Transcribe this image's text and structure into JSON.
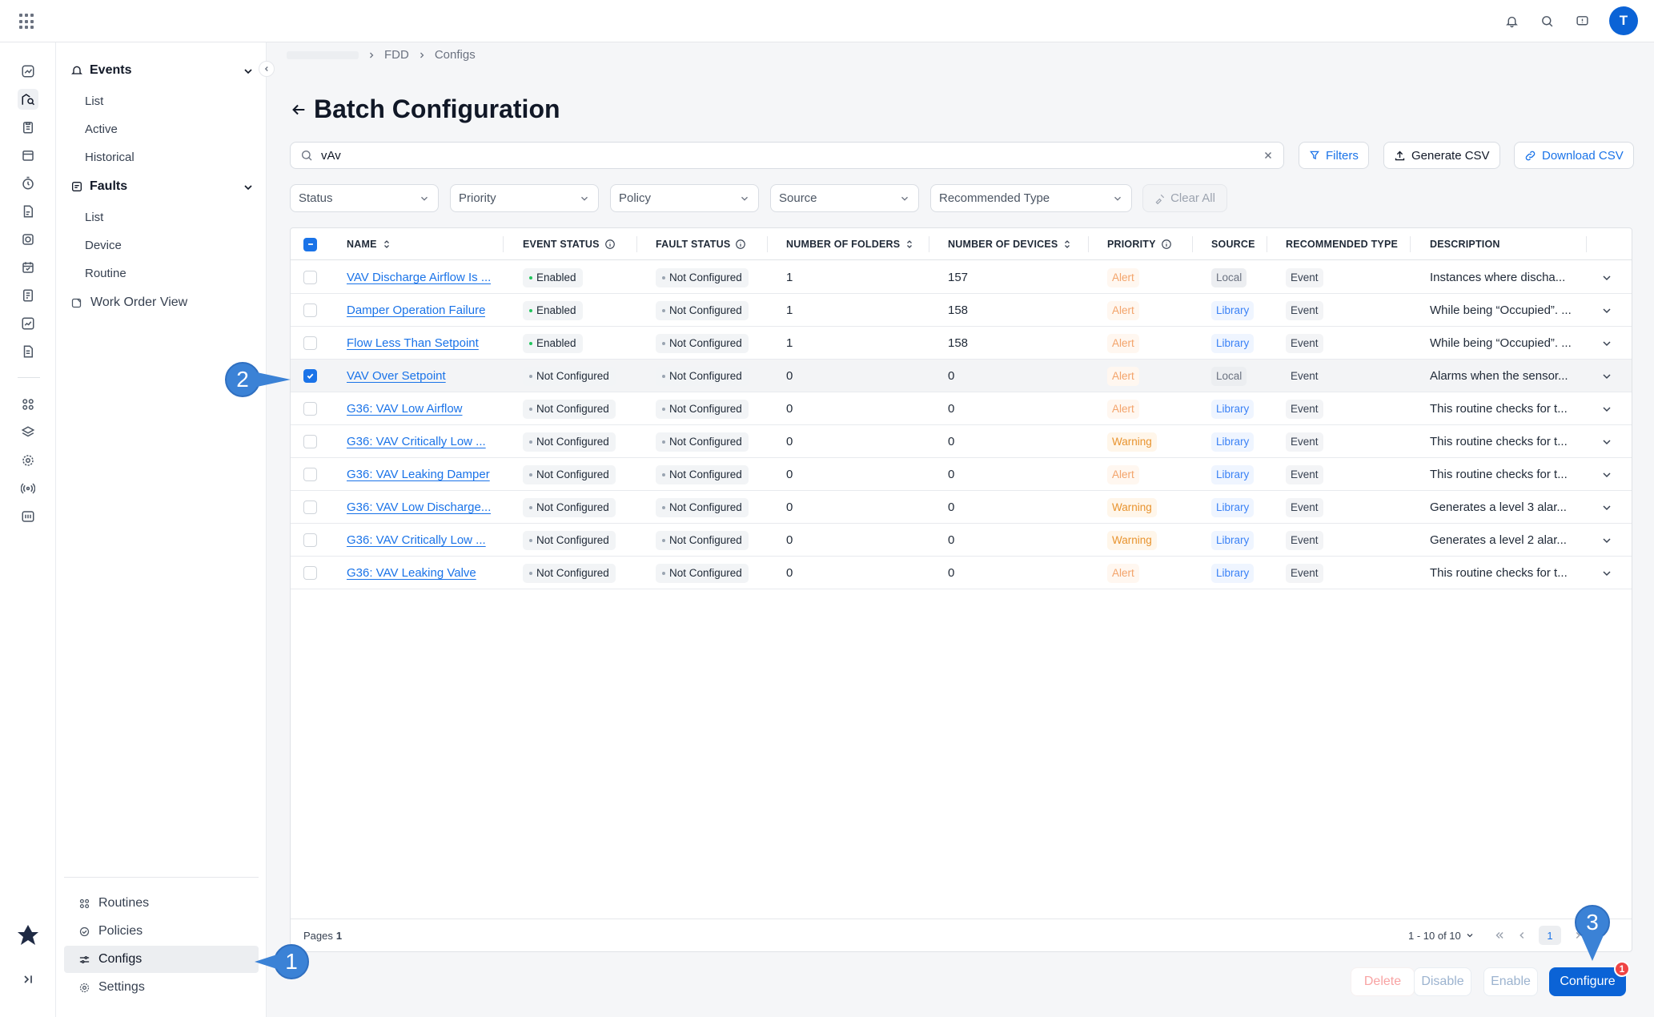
{
  "header": {
    "apps_icon": "grid-icon",
    "icons": [
      "bell-icon",
      "search-icon",
      "chat-icon"
    ],
    "avatar_initial": "T"
  },
  "rail": {
    "icons": [
      "dashboard-icon",
      "analytics-icon",
      "clipboard-icon",
      "calendar-icon",
      "timer-icon",
      "document-icon",
      "report-icon",
      "schedule-icon",
      "notes-icon",
      "chart-icon",
      "file-icon",
      "apps-icon",
      "layers-icon",
      "gear-icon",
      "signal-icon",
      "meter-icon",
      "logo-icon",
      "expand-icon"
    ]
  },
  "nav": {
    "events": {
      "label": "Events",
      "items": [
        "List",
        "Active",
        "Historical"
      ]
    },
    "faults": {
      "label": "Faults",
      "items": [
        "List",
        "Device",
        "Routine"
      ]
    },
    "work_order": "Work Order View",
    "bottom": {
      "routines": "Routines",
      "policies": "Policies",
      "configs": "Configs",
      "settings": "Settings"
    }
  },
  "breadcrumb": {
    "items": [
      "FDD",
      "Configs"
    ]
  },
  "page": {
    "title": "Batch Configuration"
  },
  "search": {
    "value": "vAv"
  },
  "toolbar": {
    "filters": "Filters",
    "generate_csv": "Generate CSV",
    "download_csv": "Download CSV"
  },
  "filters": {
    "status": "Status",
    "priority": "Priority",
    "policy": "Policy",
    "source": "Source",
    "recommended_type": "Recommended Type",
    "clear_all": "Clear All"
  },
  "table": {
    "columns": {
      "name": "NAME",
      "event_status": "EVENT STATUS",
      "fault_status": "FAULT STATUS",
      "folders": "NUMBER OF FOLDERS",
      "devices": "NUMBER OF DEVICES",
      "priority": "PRIORITY",
      "source": "SOURCE",
      "recommended_type": "RECOMMENDED TYPE",
      "description": "DESCRIPTION"
    },
    "rows": [
      {
        "name": "VAV Discharge Airflow Is ...",
        "event_status": "Enabled",
        "fault_status": "Not Configured",
        "folders": "1",
        "devices": "157",
        "priority": "Alert",
        "source": "Local",
        "type": "Event",
        "description": "Instances where discha...",
        "selected": false
      },
      {
        "name": "Damper Operation Failure",
        "event_status": "Enabled",
        "fault_status": "Not Configured",
        "folders": "1",
        "devices": "158",
        "priority": "Alert",
        "source": "Library",
        "type": "Event",
        "description": "While being “Occupied”. ...",
        "selected": false
      },
      {
        "name": "Flow Less Than Setpoint",
        "event_status": "Enabled",
        "fault_status": "Not Configured",
        "folders": "1",
        "devices": "158",
        "priority": "Alert",
        "source": "Library",
        "type": "Event",
        "description": "While being “Occupied”. ...",
        "selected": false
      },
      {
        "name": "VAV Over Setpoint",
        "event_status": "Not Configured",
        "fault_status": "Not Configured",
        "folders": "0",
        "devices": "0",
        "priority": "Alert",
        "source": "Local",
        "type": "Event",
        "description": "Alarms when the sensor...",
        "selected": true
      },
      {
        "name": "G36: VAV Low Airflow",
        "event_status": "Not Configured",
        "fault_status": "Not Configured",
        "folders": "0",
        "devices": "0",
        "priority": "Alert",
        "source": "Library",
        "type": "Event",
        "description": "This routine checks for t...",
        "selected": false
      },
      {
        "name": "G36: VAV Critically Low ...",
        "event_status": "Not Configured",
        "fault_status": "Not Configured",
        "folders": "0",
        "devices": "0",
        "priority": "Warning",
        "source": "Library",
        "type": "Event",
        "description": "This routine checks for t...",
        "selected": false
      },
      {
        "name": "G36: VAV Leaking Damper",
        "event_status": "Not Configured",
        "fault_status": "Not Configured",
        "folders": "0",
        "devices": "0",
        "priority": "Alert",
        "source": "Library",
        "type": "Event",
        "description": "This routine checks for t...",
        "selected": false
      },
      {
        "name": "G36: VAV Low Discharge...",
        "event_status": "Not Configured",
        "fault_status": "Not Configured",
        "folders": "0",
        "devices": "0",
        "priority": "Warning",
        "source": "Library",
        "type": "Event",
        "description": "Generates a level 3 alar...",
        "selected": false
      },
      {
        "name": "G36: VAV Critically Low ...",
        "event_status": "Not Configured",
        "fault_status": "Not Configured",
        "folders": "0",
        "devices": "0",
        "priority": "Warning",
        "source": "Library",
        "type": "Event",
        "description": "Generates a level 2 alar...",
        "selected": false
      },
      {
        "name": "G36: VAV Leaking Valve",
        "event_status": "Not Configured",
        "fault_status": "Not Configured",
        "folders": "0",
        "devices": "0",
        "priority": "Alert",
        "source": "Library",
        "type": "Event",
        "description": "This routine checks for t...",
        "selected": false
      }
    ]
  },
  "pagination": {
    "pages_label": "Pages",
    "pages_value": "1",
    "range": "1 - 10 of 10",
    "current": "1"
  },
  "actions": {
    "delete": "Delete",
    "disable": "Disable",
    "enable": "Enable",
    "configure": "Configure",
    "configure_count": "1"
  },
  "markers": [
    "1",
    "2",
    "3"
  ],
  "colors": {
    "accent": "#1a73e8",
    "primary_button": "#0b63d6",
    "marker": "#3b82d6",
    "alert": "#f3a36a",
    "warning": "#e8932e",
    "enabled_dot": "#22c55e"
  }
}
